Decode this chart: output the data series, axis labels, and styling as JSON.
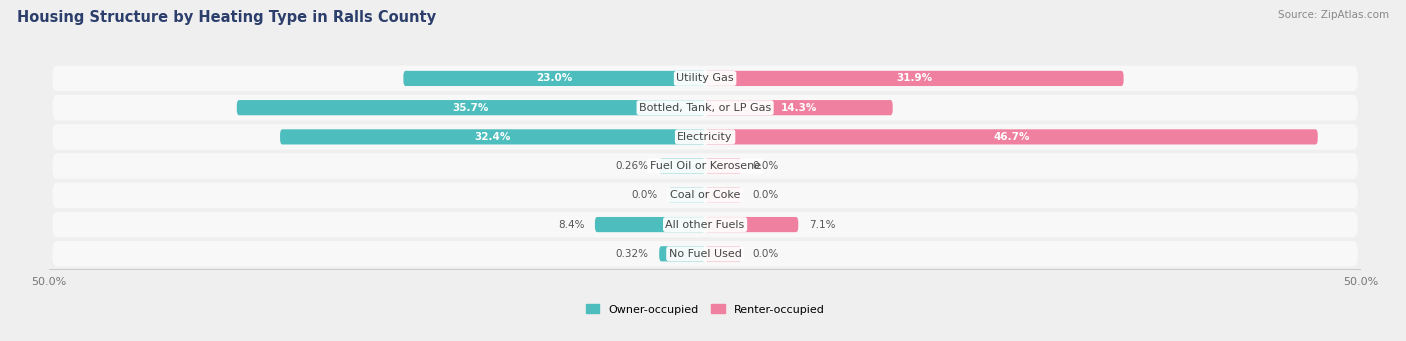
{
  "title": "Housing Structure by Heating Type in Ralls County",
  "source": "Source: ZipAtlas.com",
  "categories": [
    "Utility Gas",
    "Bottled, Tank, or LP Gas",
    "Electricity",
    "Fuel Oil or Kerosene",
    "Coal or Coke",
    "All other Fuels",
    "No Fuel Used"
  ],
  "owner_values": [
    23.0,
    35.7,
    32.4,
    0.26,
    0.0,
    8.4,
    0.32
  ],
  "renter_values": [
    31.9,
    14.3,
    46.7,
    0.0,
    0.0,
    7.1,
    0.0
  ],
  "owner_color": "#4dbdbd",
  "renter_color": "#f080a0",
  "axis_max": 50.0,
  "bar_height": 0.52,
  "min_bar_display": 3.5,
  "background_color": "#efefef",
  "row_bg_color": "#f8f8f8",
  "row_bg_color_alt": "#f0f0f0",
  "label_fontsize": 8.0,
  "title_fontsize": 10.5,
  "source_fontsize": 7.5,
  "cat_label_fontsize": 8.0,
  "val_label_fontsize": 7.5
}
